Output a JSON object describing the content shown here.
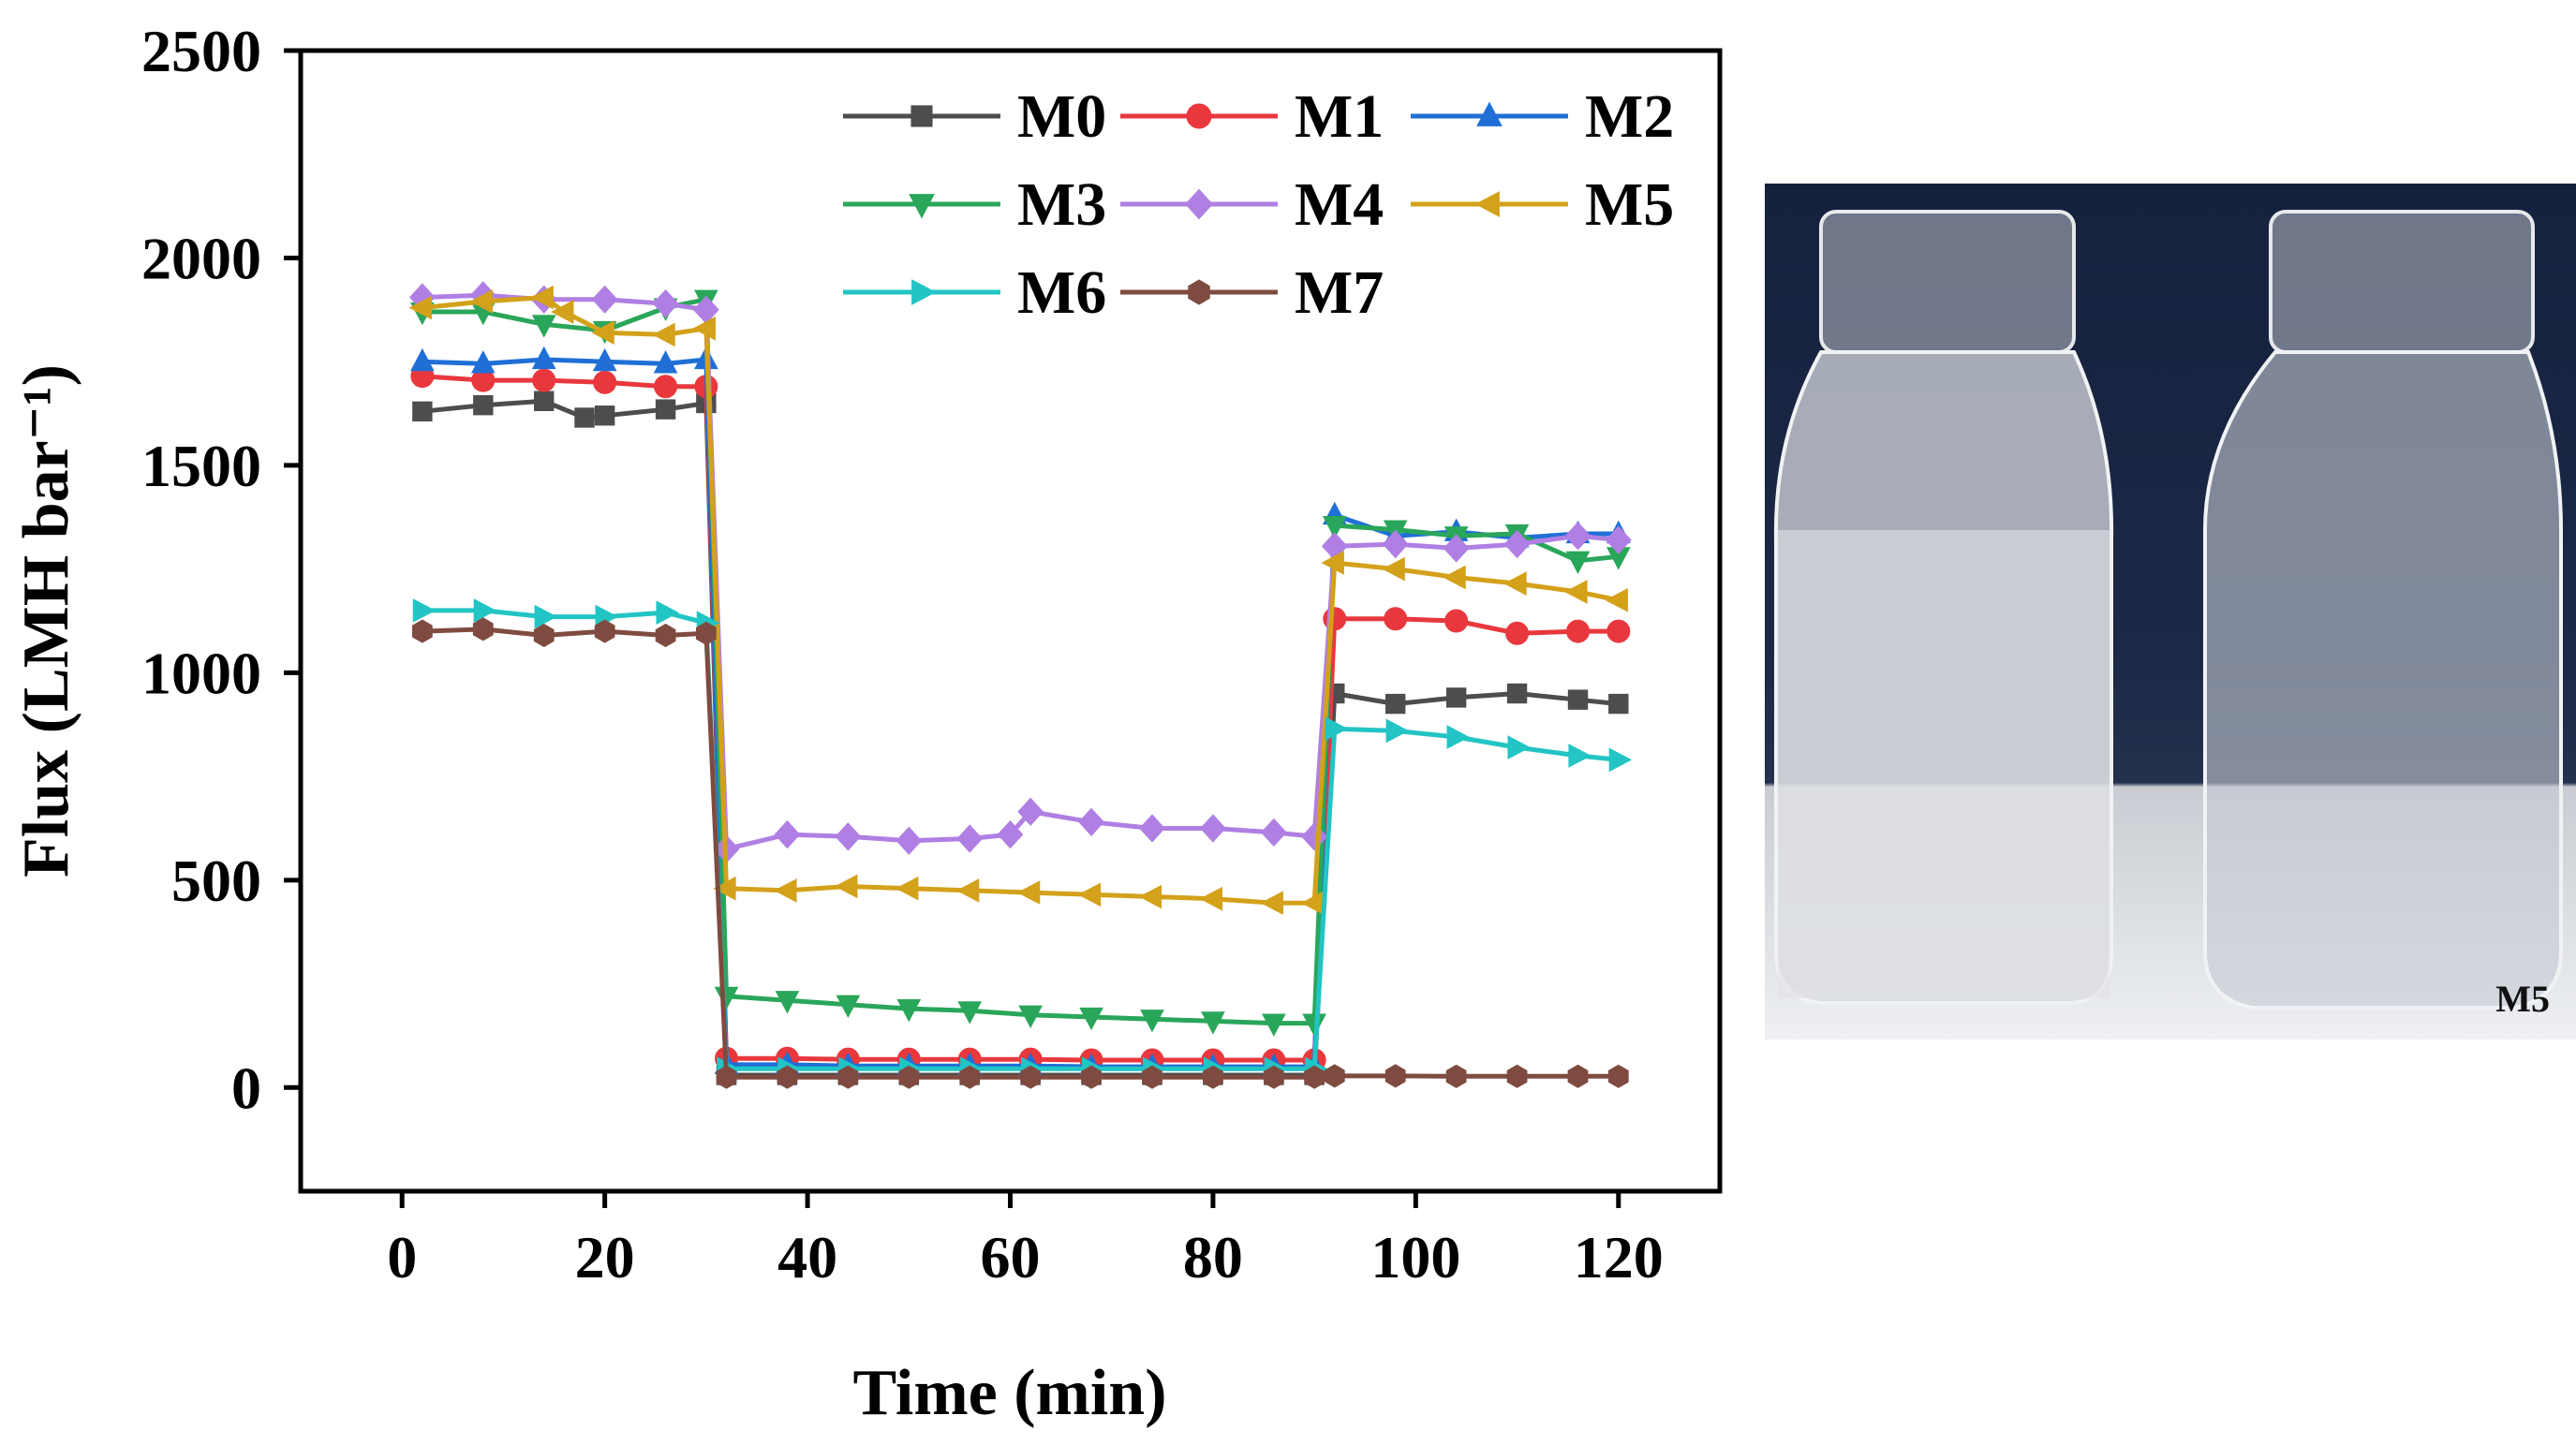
{
  "chart_data": {
    "type": "line",
    "xlabel": "Time (min)",
    "ylabel": "Flux (LMH bar⁻¹)",
    "xlim": [
      -10,
      130
    ],
    "ylim": [
      -250,
      2500
    ],
    "xticks": [
      0,
      20,
      40,
      60,
      80,
      100,
      120
    ],
    "yticks": [
      0,
      500,
      1000,
      1500,
      2000,
      2500
    ],
    "legend_position": "top-right",
    "series": [
      {
        "name": "M0",
        "color": "#4d4d4d",
        "marker": "square",
        "x": [
          2,
          8,
          14,
          18,
          20,
          26,
          30,
          32,
          38,
          44,
          50,
          56,
          62,
          68,
          74,
          80,
          86,
          90,
          92,
          98,
          104,
          110,
          116,
          120
        ],
        "y": [
          1630,
          1645,
          1655,
          1615,
          1620,
          1635,
          1650,
          30,
          30,
          30,
          30,
          30,
          30,
          30,
          30,
          30,
          30,
          30,
          950,
          925,
          940,
          950,
          935,
          925
        ]
      },
      {
        "name": "M1",
        "color": "#e8383d",
        "marker": "circle",
        "x": [
          2,
          8,
          14,
          20,
          26,
          30,
          32,
          38,
          44,
          50,
          56,
          62,
          68,
          74,
          80,
          86,
          90,
          92,
          98,
          104,
          110,
          116,
          120
        ],
        "y": [
          1715,
          1705,
          1705,
          1700,
          1690,
          1690,
          70,
          70,
          68,
          68,
          68,
          68,
          66,
          66,
          66,
          66,
          66,
          1130,
          1130,
          1125,
          1095,
          1100,
          1100
        ]
      },
      {
        "name": "M2",
        "color": "#1f6fd6",
        "marker": "triangle-up",
        "x": [
          2,
          8,
          14,
          20,
          26,
          30,
          32,
          38,
          44,
          50,
          56,
          62,
          68,
          74,
          80,
          86,
          90,
          92,
          98,
          104,
          110,
          116,
          120
        ],
        "y": [
          1750,
          1745,
          1755,
          1750,
          1745,
          1755,
          55,
          55,
          52,
          52,
          52,
          52,
          50,
          50,
          50,
          50,
          50,
          1380,
          1330,
          1340,
          1325,
          1335,
          1335
        ]
      },
      {
        "name": "M3",
        "color": "#2aa65a",
        "marker": "triangle-down",
        "x": [
          2,
          8,
          14,
          20,
          26,
          30,
          32,
          38,
          44,
          50,
          56,
          62,
          68,
          74,
          80,
          86,
          90,
          92,
          98,
          104,
          110,
          116,
          120
        ],
        "y": [
          1870,
          1870,
          1840,
          1825,
          1880,
          1900,
          220,
          210,
          200,
          190,
          185,
          175,
          170,
          165,
          160,
          155,
          155,
          1355,
          1345,
          1330,
          1335,
          1270,
          1280
        ]
      },
      {
        "name": "M4",
        "color": "#b07fe3",
        "marker": "diamond",
        "x": [
          2,
          8,
          14,
          20,
          26,
          30,
          32,
          38,
          44,
          50,
          56,
          60,
          62,
          68,
          74,
          80,
          86,
          90,
          92,
          98,
          104,
          110,
          116,
          120
        ],
        "y": [
          1905,
          1910,
          1900,
          1900,
          1890,
          1875,
          575,
          610,
          605,
          595,
          600,
          610,
          665,
          640,
          625,
          625,
          615,
          605,
          1305,
          1310,
          1300,
          1310,
          1330,
          1320
        ]
      },
      {
        "name": "M5",
        "color": "#d3a11a",
        "marker": "triangle-left",
        "x": [
          2,
          8,
          14,
          16,
          20,
          26,
          30,
          32,
          38,
          44,
          50,
          56,
          62,
          68,
          74,
          80,
          86,
          90,
          92,
          98,
          104,
          110,
          116,
          120
        ],
        "y": [
          1880,
          1895,
          1905,
          1870,
          1820,
          1815,
          1830,
          480,
          475,
          485,
          480,
          475,
          470,
          465,
          460,
          455,
          445,
          445,
          1265,
          1250,
          1230,
          1215,
          1195,
          1175
        ]
      },
      {
        "name": "M6",
        "color": "#22c4c4",
        "marker": "triangle-right",
        "x": [
          2,
          8,
          14,
          20,
          26,
          30,
          32,
          38,
          44,
          50,
          56,
          62,
          68,
          74,
          80,
          86,
          90,
          92,
          98,
          104,
          110,
          116,
          120
        ],
        "y": [
          1150,
          1150,
          1135,
          1135,
          1145,
          1120,
          45,
          45,
          45,
          45,
          45,
          45,
          45,
          45,
          45,
          45,
          45,
          865,
          860,
          845,
          820,
          800,
          790
        ]
      },
      {
        "name": "M7",
        "color": "#7f4b40",
        "marker": "hexagon",
        "x": [
          2,
          8,
          14,
          20,
          26,
          30,
          32,
          38,
          44,
          50,
          56,
          62,
          68,
          74,
          80,
          86,
          90,
          92,
          98,
          104,
          110,
          116,
          120
        ],
        "y": [
          1100,
          1105,
          1090,
          1100,
          1090,
          1095,
          25,
          25,
          25,
          25,
          25,
          25,
          25,
          25,
          25,
          25,
          25,
          28,
          28,
          27,
          27,
          27,
          27
        ]
      }
    ]
  },
  "photo": {
    "label": "M5",
    "description_icon": "vials-photo"
  }
}
